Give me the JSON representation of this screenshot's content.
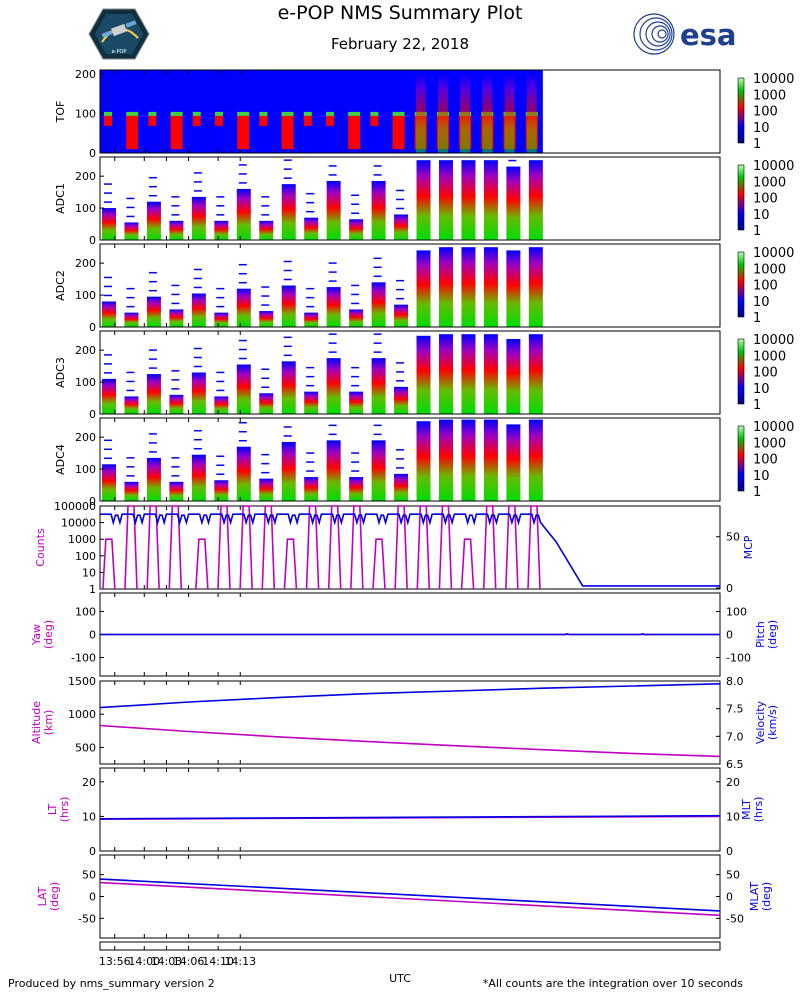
{
  "header": {
    "title": "e-POP NMS Summary Plot",
    "date": "February 22, 2018",
    "mission_logo_text": "e-POP",
    "agency_logo_text": "esa"
  },
  "footer": {
    "left": "Produced by nms_summary version 2",
    "right": "*All counts are the integration over 10 seconds"
  },
  "colors": {
    "magenta": "#c000c0",
    "blue": "#0000e0",
    "spec_low": "#0000ff",
    "spec_mid": "#ff0000",
    "spec_high": "#00c000"
  },
  "chart_data": [
    {
      "type": "heatmap",
      "name": "TOF",
      "ylabel": "TOF",
      "ylim": [
        0,
        210
      ],
      "yticks": [
        0,
        100,
        200
      ],
      "colorbar": {
        "scale": "log",
        "ticks": [
          "1",
          "10",
          "100",
          "1000",
          "10000"
        ]
      },
      "background_filled": true,
      "active_bins_y": [
        100,
        140,
        180
      ]
    },
    {
      "type": "heatmap",
      "name": "ADC1",
      "ylabel": "ADC1",
      "ylim": [
        0,
        260
      ],
      "yticks": [
        0,
        100,
        200
      ],
      "colorbar": {
        "scale": "log",
        "ticks": [
          "1",
          "10",
          "100",
          "1000",
          "10000"
        ]
      },
      "burst_heights": [
        100,
        55,
        120,
        60,
        135,
        60,
        160,
        60,
        175,
        70,
        185,
        65,
        185,
        80,
        250,
        250,
        250,
        250,
        230,
        250
      ]
    },
    {
      "type": "heatmap",
      "name": "ADC2",
      "ylabel": "ADC2",
      "ylim": [
        0,
        260
      ],
      "yticks": [
        0,
        100,
        200
      ],
      "colorbar": {
        "scale": "log",
        "ticks": [
          "1",
          "10",
          "100",
          "1000",
          "10000"
        ]
      },
      "burst_heights": [
        80,
        45,
        95,
        55,
        105,
        45,
        120,
        50,
        130,
        45,
        125,
        55,
        140,
        70,
        240,
        250,
        250,
        250,
        240,
        250
      ]
    },
    {
      "type": "heatmap",
      "name": "ADC3",
      "ylabel": "ADC3",
      "ylim": [
        0,
        260
      ],
      "yticks": [
        0,
        100,
        200
      ],
      "colorbar": {
        "scale": "log",
        "ticks": [
          "1",
          "10",
          "100",
          "1000",
          "10000"
        ]
      },
      "burst_heights": [
        110,
        55,
        125,
        60,
        130,
        55,
        155,
        65,
        165,
        70,
        175,
        70,
        175,
        85,
        245,
        250,
        250,
        250,
        235,
        250
      ]
    },
    {
      "type": "heatmap",
      "name": "ADC4",
      "ylabel": "ADC4",
      "ylim": [
        0,
        260
      ],
      "yticks": [
        0,
        100,
        200
      ],
      "colorbar": {
        "scale": "log",
        "ticks": [
          "1",
          "10",
          "100",
          "1000",
          "10000"
        ]
      },
      "burst_heights": [
        115,
        60,
        135,
        60,
        145,
        65,
        170,
        70,
        185,
        75,
        190,
        75,
        190,
        85,
        250,
        255,
        255,
        255,
        240,
        255
      ]
    },
    {
      "type": "line",
      "name": "Counts/MCP",
      "left": {
        "label": "Counts",
        "scale": "log",
        "ylim": [
          1,
          100000
        ],
        "ticks": [
          "1",
          "10",
          "100",
          "1000",
          "10000",
          "100000"
        ]
      },
      "right": {
        "label": "MCP",
        "ylim": [
          -1,
          80
        ],
        "ticks": [
          "0",
          "50"
        ]
      },
      "counts_pulses": [
        {
          "t": 13.92,
          "peak": 1000
        },
        {
          "t": 13.97,
          "peak": 100000
        },
        {
          "t": 14.02,
          "peak": 100000
        },
        {
          "t": 14.07,
          "peak": 100000
        },
        {
          "t": 14.13,
          "peak": 1000
        },
        {
          "t": 14.18,
          "peak": 100000
        },
        {
          "t": 14.23,
          "peak": 100000
        },
        {
          "t": 14.28,
          "peak": 100000
        },
        {
          "t": 14.33,
          "peak": 1000
        },
        {
          "t": 14.38,
          "peak": 100000
        },
        {
          "t": 14.43,
          "peak": 100000
        },
        {
          "t": 14.48,
          "peak": 100000
        },
        {
          "t": 14.53,
          "peak": 1000
        },
        {
          "t": 14.58,
          "peak": 100000
        },
        {
          "t": 14.63,
          "peak": 100000
        },
        {
          "t": 14.68,
          "peak": 100000
        },
        {
          "t": 14.73,
          "peak": 1000
        },
        {
          "t": 14.78,
          "peak": 100000
        },
        {
          "t": 14.83,
          "peak": 100000
        },
        {
          "t": 14.88,
          "peak": 100000
        }
      ],
      "mcp": {
        "oscillation_high": 72,
        "oscillation_low": 52,
        "period_h": 0.05,
        "t_end_osc": 14.9,
        "drop_start": 14.93,
        "drop_level": 45,
        "t_off": 14.99,
        "off_level": 2
      }
    },
    {
      "type": "line",
      "name": "Yaw/Pitch",
      "left": {
        "label": "Yaw",
        "unit": "(deg)",
        "ylim": [
          -180,
          180
        ],
        "ticks": [
          "-100",
          "0",
          "100"
        ]
      },
      "right": {
        "label": "Pitch",
        "unit": "(deg)",
        "ylim": [
          -180,
          180
        ],
        "ticks": [
          "-100",
          "0",
          "100"
        ]
      },
      "yaw_value": 0,
      "pitch_value": 0
    },
    {
      "type": "line",
      "name": "Altitude/Velocity",
      "left": {
        "label": "Altitude",
        "unit": "(km)",
        "ylim": [
          250,
          1500
        ],
        "ticks": [
          "500",
          "1000",
          "1500"
        ]
      },
      "right": {
        "label": "Velocity",
        "unit": "(km/s)",
        "ylim": [
          6.5,
          8.0
        ],
        "ticks": [
          "6.5",
          "7.0",
          "7.5",
          "8.0"
        ]
      },
      "x": [
        13.9,
        14.1,
        14.3,
        14.5,
        14.7,
        14.9,
        15.1,
        15.3
      ],
      "altitude": [
        830,
        740,
        660,
        590,
        525,
        465,
        410,
        365
      ],
      "velocity": [
        7.52,
        7.62,
        7.7,
        7.77,
        7.82,
        7.87,
        7.91,
        7.95
      ]
    },
    {
      "type": "line",
      "name": "LT/MLT",
      "left": {
        "label": "LT",
        "unit": "(hrs)",
        "ylim": [
          0,
          24
        ],
        "ticks": [
          "0",
          "10",
          "20"
        ]
      },
      "right": {
        "label": "MLT",
        "unit": "(hrs)",
        "ylim": [
          0,
          24
        ],
        "ticks": [
          "0",
          "10",
          "20"
        ]
      },
      "x": [
        13.9,
        15.3
      ],
      "lt": [
        9.2,
        10.0
      ],
      "mlt": [
        9.3,
        10.2
      ]
    },
    {
      "type": "line",
      "name": "LAT/MLAT",
      "left": {
        "label": "LAT",
        "unit": "(deg)",
        "ylim": [
          -95,
          95
        ],
        "ticks": [
          "-50",
          "0",
          "50"
        ]
      },
      "right": {
        "label": "MLAT",
        "unit": "(deg)",
        "ylim": [
          -95,
          95
        ],
        "ticks": [
          "-50",
          "0",
          "50"
        ]
      },
      "x": [
        13.9,
        15.3
      ],
      "lat": [
        32,
        -43
      ],
      "mlat": [
        40,
        -33
      ]
    },
    {
      "type": "axis",
      "name": "time",
      "xlabel": "UTC",
      "xlim": [
        13.9,
        15.3
      ],
      "xticks": [
        {
          "v": 13.9333,
          "label": "13:56"
        },
        {
          "v": 14.0,
          "label": "14:00"
        },
        {
          "v": 14.05,
          "label": "14:03"
        },
        {
          "v": 14.1,
          "label": "14:06"
        },
        {
          "v": 14.1667,
          "label": "14:10"
        },
        {
          "v": 14.2167,
          "label": "14:13"
        }
      ],
      "data_end": 14.9
    }
  ]
}
